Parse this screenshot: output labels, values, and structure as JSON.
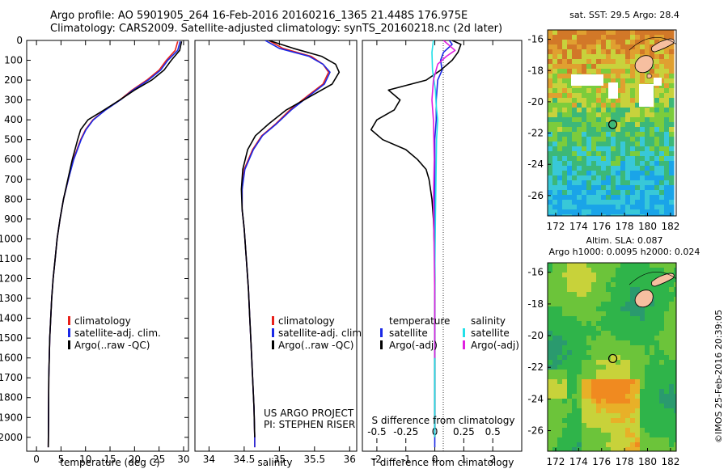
{
  "header": {
    "title_line1": "Argo profile: AO 5901905_264 16-Feb-2016 20160216_1365 21.448S 176.975E",
    "title_line2": "Climatology: CARS2009. Satellite-adjusted climatology: synTS_20160218.nc (2d later)"
  },
  "colors": {
    "climatology": "#e8201a",
    "satellite": "#1a28e6",
    "argo": "#000000",
    "sat_salinity": "#22e0e8",
    "argo_salinity": "#e020e0"
  },
  "chart_data": [
    {
      "type": "line",
      "xlabel": "temperature (deg C)",
      "ylabel": "",
      "xlim": [
        -2,
        31
      ],
      "ylim": [
        2070,
        0
      ],
      "xticks": [
        "0",
        "5",
        "10",
        "15",
        "20",
        "25",
        "30"
      ],
      "yticks": [
        "0",
        "100",
        "200",
        "300",
        "400",
        "500",
        "600",
        "700",
        "800",
        "900",
        "1000",
        "1100",
        "1200",
        "1300",
        "1400",
        "1500",
        "1600",
        "1700",
        "1800",
        "1900",
        "2000"
      ],
      "legend": [
        "climatology",
        "satellite-adj. clim.",
        "Argo(..raw -QC)"
      ],
      "series": [
        {
          "name": "climatology",
          "color_key": "climatology",
          "x": [
            28.8,
            28.3,
            26.5,
            25.0,
            22.5,
            19.5,
            17.0,
            14.0,
            11.5,
            10.0,
            9.0,
            7.5,
            6.5,
            5.5,
            4.8,
            4.2,
            3.8,
            3.4,
            3.1,
            2.9,
            2.7,
            2.6,
            2.5,
            2.45,
            2.4
          ],
          "y": [
            5,
            50,
            100,
            150,
            200,
            250,
            300,
            350,
            400,
            450,
            500,
            600,
            700,
            800,
            900,
            1000,
            1100,
            1200,
            1300,
            1400,
            1500,
            1600,
            1700,
            1900,
            2050
          ]
        },
        {
          "name": "satellite-adj. clim.",
          "color_key": "satellite",
          "x": [
            29.3,
            28.8,
            26.8,
            25.3,
            22.8,
            19.7,
            17.1,
            14.1,
            11.6,
            10.1,
            9.1,
            7.6,
            6.5,
            5.5,
            4.8,
            4.2,
            3.8,
            3.4,
            3.1,
            2.9,
            2.7,
            2.6,
            2.5,
            2.45,
            2.4
          ],
          "y": [
            5,
            50,
            100,
            150,
            200,
            250,
            300,
            350,
            400,
            450,
            500,
            600,
            700,
            800,
            900,
            1000,
            1100,
            1200,
            1300,
            1400,
            1500,
            1600,
            1700,
            1900,
            2050
          ]
        },
        {
          "name": "Argo(..raw -QC)",
          "color_key": "argo",
          "x": [
            29.6,
            29.2,
            27.5,
            26.0,
            23.5,
            20.0,
            17.0,
            13.8,
            10.5,
            9.0,
            8.4,
            7.3,
            6.4,
            5.5,
            4.8,
            4.2,
            3.8,
            3.4,
            3.1,
            2.9,
            2.7,
            2.6,
            2.5,
            2.45,
            2.4
          ],
          "y": [
            5,
            50,
            100,
            150,
            200,
            250,
            300,
            350,
            400,
            450,
            500,
            600,
            700,
            800,
            900,
            1000,
            1100,
            1200,
            1300,
            1400,
            1500,
            1600,
            1700,
            1900,
            2050
          ]
        }
      ]
    },
    {
      "type": "line",
      "xlabel": "salinity",
      "ylabel": "",
      "xlim": [
        33.8,
        36.1
      ],
      "ylim": [
        2070,
        0
      ],
      "xticks": [
        "34",
        "34.5",
        "35",
        "35.5",
        "36"
      ],
      "legend": [
        "climatology",
        "satellite-adj. clim.",
        "Argo(..raw -QC)"
      ],
      "annotation": [
        "US ARGO PROJECT",
        "PI: STEPHEN RISER"
      ],
      "series": [
        {
          "name": "climatology",
          "color_key": "climatology",
          "x": [
            34.85,
            35.05,
            35.45,
            35.62,
            35.7,
            35.62,
            35.4,
            35.15,
            34.95,
            34.75,
            34.62,
            34.5,
            34.47,
            34.47,
            34.5,
            34.53,
            34.56,
            34.58,
            34.6,
            34.62,
            34.64,
            34.65,
            34.65
          ],
          "y": [
            0,
            40,
            80,
            120,
            160,
            220,
            280,
            350,
            420,
            480,
            550,
            650,
            750,
            850,
            950,
            1100,
            1250,
            1400,
            1550,
            1700,
            1850,
            2000,
            2050
          ]
        },
        {
          "name": "satellite-adj. clim.",
          "color_key": "satellite",
          "x": [
            34.8,
            35.0,
            35.42,
            35.62,
            35.72,
            35.64,
            35.42,
            35.17,
            34.96,
            34.76,
            34.63,
            34.51,
            34.47,
            34.47,
            34.5,
            34.53,
            34.56,
            34.58,
            34.6,
            34.62,
            34.64,
            34.65,
            34.65
          ],
          "y": [
            0,
            40,
            80,
            120,
            160,
            220,
            280,
            350,
            420,
            480,
            550,
            650,
            750,
            850,
            950,
            1100,
            1250,
            1400,
            1550,
            1700,
            1850,
            2000,
            2050
          ]
        },
        {
          "name": "Argo(..raw -QC)",
          "color_key": "argo",
          "x": [
            34.85,
            35.2,
            35.6,
            35.8,
            35.85,
            35.75,
            35.45,
            35.1,
            34.85,
            34.66,
            34.55,
            34.48,
            34.46,
            34.47,
            34.5,
            34.53,
            34.56,
            34.58,
            34.6,
            34.62,
            34.64,
            34.65
          ],
          "y": [
            0,
            40,
            80,
            120,
            160,
            220,
            280,
            350,
            420,
            480,
            550,
            650,
            750,
            850,
            950,
            1100,
            1250,
            1400,
            1550,
            1700,
            1850,
            2000
          ]
        }
      ]
    },
    {
      "type": "line",
      "xlabel": "T difference from climatology",
      "top_xlabel": "S difference from climatology",
      "xlim": [
        -2.5,
        3
      ],
      "ylim": [
        2070,
        0
      ],
      "xticks": [
        "-2",
        "-1",
        "0",
        "1",
        "2"
      ],
      "top_xticks": [
        "-0.5",
        "-0.25",
        "0",
        "0.25",
        "0.5"
      ],
      "legend_left_title": "temperature",
      "legend_right_title": "salinity",
      "legend_left": [
        "satellite",
        "Argo(-adj)"
      ],
      "legend_right": [
        "satellite",
        "Argo(-adj)"
      ],
      "series": [
        {
          "name": "temperature satellite",
          "color_key": "satellite",
          "x": [
            0.5,
            0.6,
            0.3,
            0.2,
            0.25,
            0.1,
            0.05,
            0.05,
            0.0,
            0.0,
            0.0,
            0.0,
            0.0,
            0.0
          ],
          "y": [
            0,
            20,
            60,
            100,
            150,
            200,
            300,
            400,
            500,
            700,
            900,
            1200,
            1600,
            2050
          ]
        },
        {
          "name": "temperature Argo(-adj)",
          "color_key": "argo",
          "x": [
            0.6,
            0.9,
            0.8,
            0.6,
            0.2,
            -0.3,
            -1.6,
            -1.2,
            -1.4,
            -2.0,
            -2.2,
            -1.8,
            -1.0,
            -0.6,
            -0.3,
            -0.2,
            -0.1,
            -0.05,
            0.0,
            0.0,
            0.0,
            0.0
          ],
          "y": [
            0,
            20,
            60,
            100,
            150,
            200,
            250,
            300,
            350,
            400,
            450,
            500,
            550,
            600,
            650,
            700,
            800,
            900,
            1100,
            1400,
            1700,
            2000
          ]
        },
        {
          "name": "salinity satellite",
          "color_key": "sat_salinity",
          "x": [
            -0.05,
            -0.1,
            -0.08,
            0.02,
            0.05,
            0.1,
            0.06,
            0.04,
            0.02,
            0.0,
            0.0,
            0.0
          ],
          "y": [
            0,
            60,
            150,
            250,
            330,
            400,
            500,
            700,
            900,
            1200,
            1600,
            2000
          ]
        },
        {
          "name": "salinity Argo(-adj)",
          "color_key": "argo_salinity",
          "x": [
            0.3,
            0.7,
            0.4,
            0.1,
            -0.05,
            -0.1,
            -0.05,
            -0.02,
            -0.05,
            -0.03,
            0.0,
            0.0
          ],
          "y": [
            0,
            50,
            80,
            120,
            200,
            300,
            400,
            600,
            800,
            1000,
            1300,
            1600
          ]
        }
      ]
    },
    {
      "type": "heatmap",
      "title": "sat. SST: 29.5 Argo: 28.4",
      "xticks": [
        "172",
        "174",
        "176",
        "178",
        "180",
        "182"
      ],
      "yticks": [
        "-16",
        "-18",
        "-20",
        "-22",
        "-24",
        "-26"
      ],
      "xlim": [
        171.3,
        182.5
      ],
      "ylim": [
        -27.3,
        -15.4
      ],
      "marker": {
        "lon": 176.975,
        "lat": -21.448
      }
    },
    {
      "type": "heatmap",
      "title_line1": "Altim. SLA: 0.087",
      "title_line2": "Argo h1000: 0.0095 h2000: 0.024",
      "xticks": [
        "172",
        "174",
        "176",
        "178",
        "180",
        "182"
      ],
      "yticks": [
        "-16",
        "-18",
        "-20",
        "-22",
        "-24",
        "-26"
      ],
      "xlim": [
        171.3,
        182.5
      ],
      "ylim": [
        -27.3,
        -15.4
      ],
      "marker": {
        "lon": 176.975,
        "lat": -21.448
      }
    }
  ],
  "footer": {
    "credit": "©IMOS 25-Feb-2016 20:39:05"
  }
}
